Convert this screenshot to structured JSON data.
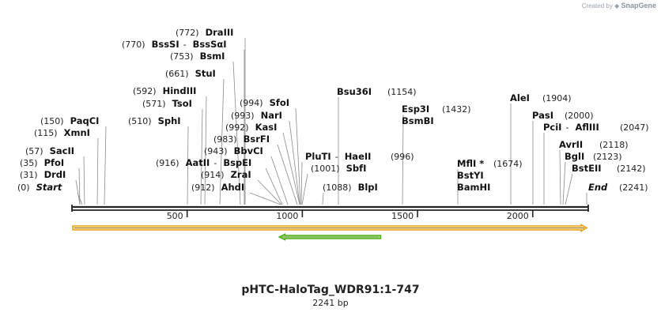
{
  "credit": {
    "prefix": "Created by",
    "brand": "SnapGene"
  },
  "plasmid": {
    "name": "pHTC-HaloTag_WDR91:1-747",
    "length_label": "2241 bp",
    "length_bp": 2241
  },
  "ruler": {
    "ticks": [
      500,
      1000,
      1500,
      2000
    ]
  },
  "features": [
    {
      "name": "orf-arrow",
      "start": 0,
      "end": 2241,
      "direction": "forward",
      "fill": "#fbe9b0",
      "stroke": "#e8a317"
    },
    {
      "name": "halotag-arrow",
      "start": 900,
      "end": 1340,
      "direction": "reverse",
      "fill": "#c9f0a0",
      "stroke": "#4caf1a"
    }
  ],
  "colors": {
    "backbone": "#222222",
    "leader": "#8a8a8a"
  },
  "sites": [
    {
      "id": "start",
      "pos": "(0)",
      "names": [
        "Start"
      ],
      "italic": true,
      "cut": 0
    },
    {
      "id": "drdi",
      "pos": "(31)",
      "names": [
        "DrdI"
      ],
      "cut": 31
    },
    {
      "id": "pfoi",
      "pos": "(35)",
      "names": [
        "PfoI"
      ],
      "cut": 35
    },
    {
      "id": "sacii",
      "pos": "(57)",
      "names": [
        "SacII"
      ],
      "cut": 57
    },
    {
      "id": "xmni",
      "pos": "(115)",
      "names": [
        "XmnI"
      ],
      "cut": 115
    },
    {
      "id": "paqci",
      "pos": "(150)",
      "names": [
        "PaqCI"
      ],
      "cut": 150
    },
    {
      "id": "sphi",
      "pos": "(510)",
      "names": [
        "SphI"
      ],
      "cut": 510
    },
    {
      "id": "tsoi",
      "pos": "(571)",
      "names": [
        "TsoI"
      ],
      "cut": 571
    },
    {
      "id": "hindiii",
      "pos": "(592)",
      "names": [
        "HindIII"
      ],
      "cut": 592
    },
    {
      "id": "stui",
      "pos": "(661)",
      "names": [
        "StuI"
      ],
      "cut": 661
    },
    {
      "id": "bsmi",
      "pos": "(753)",
      "names": [
        "BsmI"
      ],
      "cut": 753
    },
    {
      "id": "bsssi",
      "pos": "(770)",
      "names": [
        "BssSI",
        "BssSαI"
      ],
      "cut": 770
    },
    {
      "id": "draiii",
      "pos": "(772)",
      "names": [
        "DraIII"
      ],
      "cut": 772
    },
    {
      "id": "ahdi",
      "pos": "(912)",
      "names": [
        "AhdI"
      ],
      "cut": 912
    },
    {
      "id": "zrai",
      "pos": "(914)",
      "names": [
        "ZraI"
      ],
      "cut": 914
    },
    {
      "id": "aatii",
      "pos": "(916)",
      "names": [
        "AatII",
        "BspEI"
      ],
      "cut": 916
    },
    {
      "id": "bbvci",
      "pos": "(943)",
      "names": [
        "BbvCI"
      ],
      "cut": 943
    },
    {
      "id": "bsrfi",
      "pos": "(983)",
      "names": [
        "BsrFI"
      ],
      "cut": 983
    },
    {
      "id": "kasi",
      "pos": "(992)",
      "names": [
        "KasI"
      ],
      "cut": 992
    },
    {
      "id": "nari",
      "pos": "(993)",
      "names": [
        "NarI"
      ],
      "cut": 993
    },
    {
      "id": "sfoi",
      "pos": "(994)",
      "names": [
        "SfoI"
      ],
      "cut": 994
    },
    {
      "id": "plutl",
      "pos": "(996)",
      "names": [
        "PluTI",
        "HaeII"
      ],
      "cut": 996
    },
    {
      "id": "sbfi",
      "pos": "(1001)",
      "names": [
        "SbfI"
      ],
      "cut": 1001
    },
    {
      "id": "blpi",
      "pos": "(1088)",
      "names": [
        "BlpI"
      ],
      "cut": 1088
    },
    {
      "id": "bsu36i",
      "pos": "(1154)",
      "names": [
        "Bsu36I"
      ],
      "cut": 1154
    },
    {
      "id": "esp3i",
      "pos": "(1432)",
      "names": [
        "Esp3I",
        "BsmBI"
      ],
      "cut": 1432
    },
    {
      "id": "mfli",
      "pos": "(1674)",
      "names": [
        "MflI *",
        "BstYI",
        "BamHI"
      ],
      "cut": 1674
    },
    {
      "id": "alei",
      "pos": "(1904)",
      "names": [
        "AleI"
      ],
      "cut": 1904
    },
    {
      "id": "pasi",
      "pos": "(2000)",
      "names": [
        "PasI"
      ],
      "cut": 2000
    },
    {
      "id": "pcii",
      "pos": "(2047)",
      "names": [
        "PciI",
        "AflIII"
      ],
      "cut": 2047
    },
    {
      "id": "avrii",
      "pos": "(2118)",
      "names": [
        "AvrII"
      ],
      "cut": 2118
    },
    {
      "id": "bgli",
      "pos": "(2123)",
      "names": [
        "BglI"
      ],
      "cut": 2123
    },
    {
      "id": "bsteii",
      "pos": "(2142)",
      "names": [
        "BstEII"
      ],
      "cut": 2142
    },
    {
      "id": "end",
      "pos": "(2241)",
      "names": [
        "End"
      ],
      "italic": true,
      "cut": 2241
    }
  ]
}
